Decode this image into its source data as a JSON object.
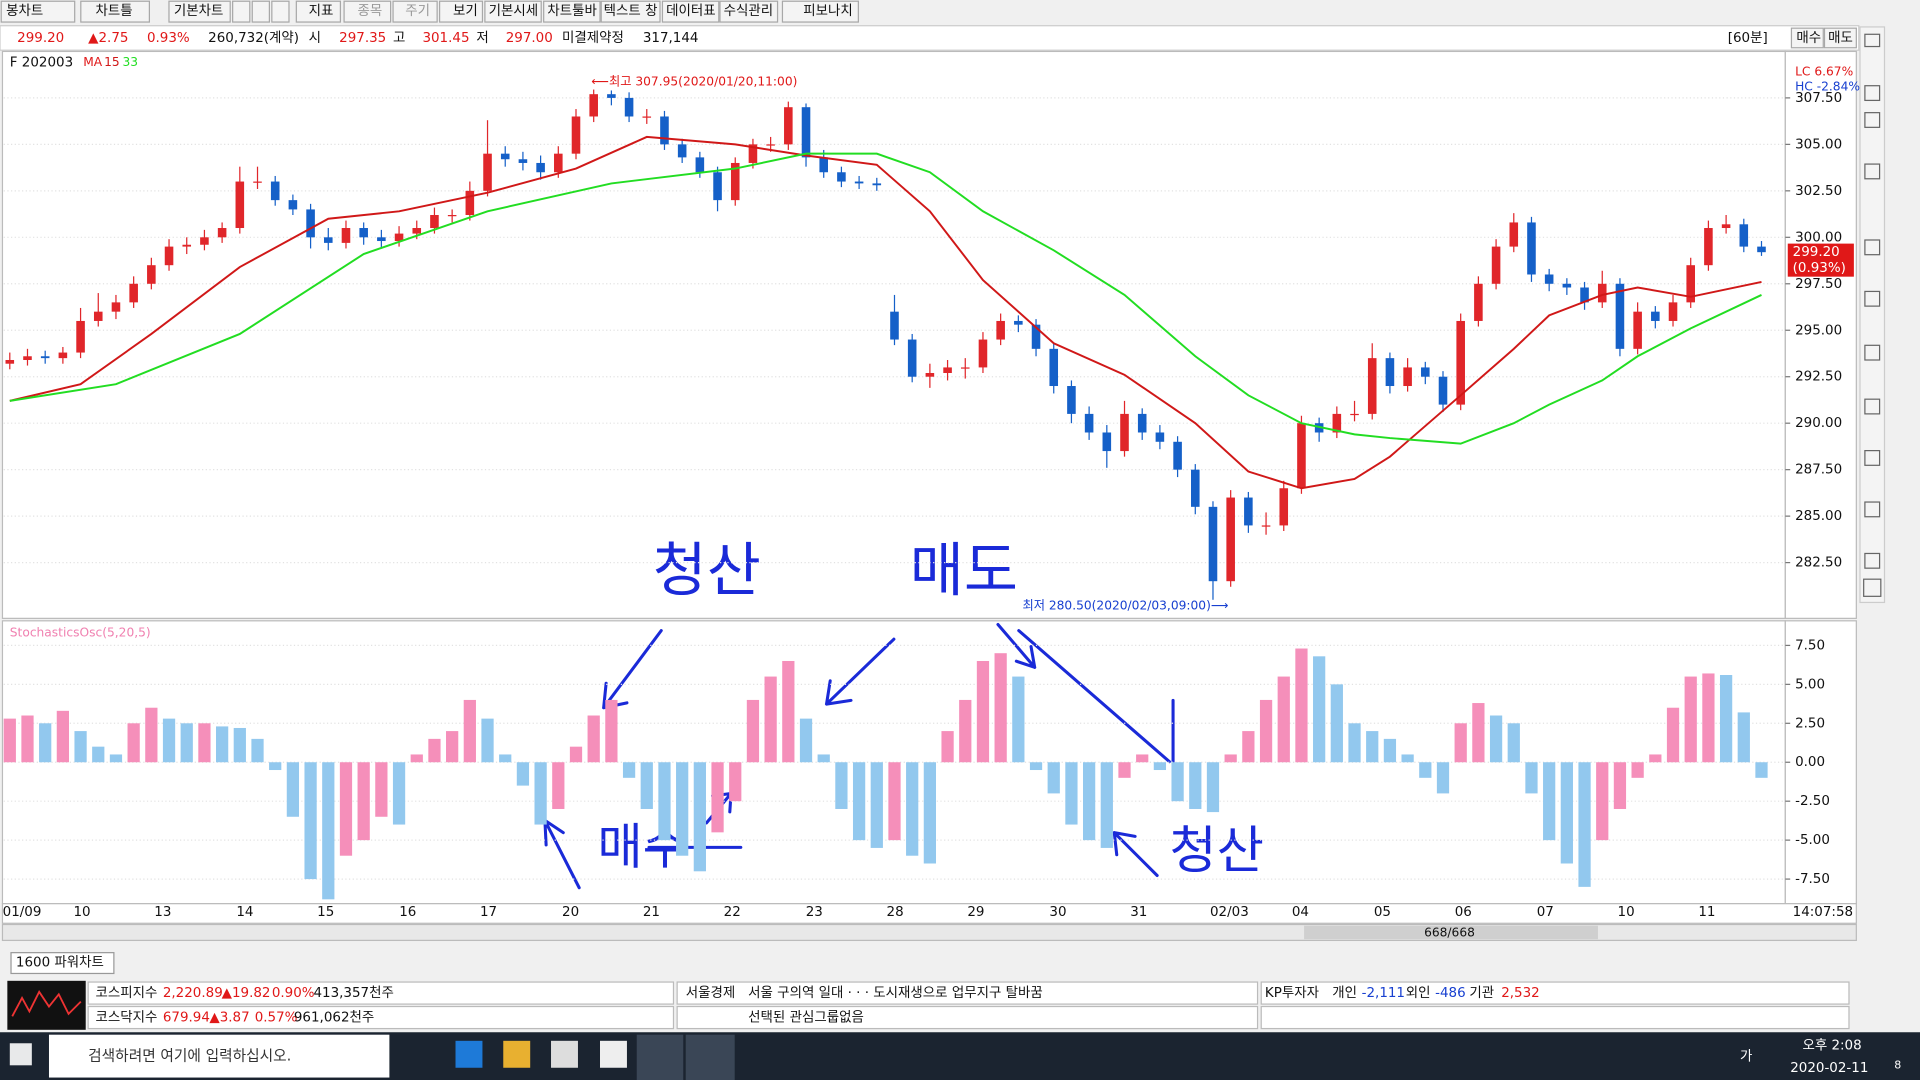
{
  "toolbar": {
    "buttons": [
      "봉차트",
      "차트틀",
      "기본차트",
      "지표",
      "종목",
      "주기",
      "보기",
      "기본시세",
      "차트툴바",
      "텍스트 창",
      "데이터표",
      "수식관리",
      "피보나치"
    ]
  },
  "info": {
    "price": "299.20",
    "change": "▲2.75",
    "rate": "0.93%",
    "volume": "260,732(계약)",
    "open_label": "시",
    "open": "297.35",
    "high_label": "고",
    "high": "301.45",
    "low_label": "저",
    "low": "297.00",
    "oi_label": "미결제약정",
    "oi": "317,144",
    "period": "[60분]",
    "buy": "매수",
    "sell": "매도"
  },
  "chart_data": [
    {
      "type": "candlestick",
      "title": "F 202003",
      "ma_label": "MA",
      "up_color": "#e0262a",
      "down_color": "#1560c8",
      "grid": true,
      "ylim": [
        279.5,
        310
      ],
      "yticks": [
        {
          "value": 307.5,
          "label": "307.50"
        },
        {
          "value": 305,
          "label": "305.00"
        },
        {
          "value": 302.5,
          "label": "302.50"
        },
        {
          "value": 300,
          "label": "300.00"
        },
        {
          "value": 297.5,
          "label": "297.50"
        },
        {
          "value": 295,
          "label": "295.00"
        },
        {
          "value": 292.5,
          "label": "292.50"
        },
        {
          "value": 290,
          "label": "290.00"
        },
        {
          "value": 287.5,
          "label": "287.50"
        },
        {
          "value": 285,
          "label": "285.00"
        },
        {
          "value": 282.5,
          "label": "282.50"
        }
      ],
      "high_annotation": "⟵최고 307.95(2020/01/20,11:00)",
      "low_annotation": "최저 280.50(2020/02/03,09:00)⟶",
      "lc": "LC  6.67%",
      "hc": "HC -2.84%",
      "last_price": {
        "value": 299.2,
        "label": "299.20"
      },
      "last_rate": "(0.93%)",
      "candles": [
        [
          293.2,
          293.8,
          292.9,
          293.4
        ],
        [
          293.4,
          294,
          293.1,
          293.6
        ],
        [
          293.6,
          293.9,
          293.2,
          293.5
        ],
        [
          293.5,
          294.1,
          293.2,
          293.8
        ],
        [
          293.8,
          296.2,
          293.5,
          295.5
        ],
        [
          295.5,
          297,
          295.2,
          296
        ],
        [
          296,
          296.9,
          295.6,
          296.5
        ],
        [
          296.5,
          297.9,
          296.2,
          297.5
        ],
        [
          297.5,
          298.9,
          297.2,
          298.5
        ],
        [
          298.5,
          299.9,
          298.2,
          299.5
        ],
        [
          299.5,
          300,
          299.1,
          299.6
        ],
        [
          299.6,
          300.4,
          299.3,
          300
        ],
        [
          300,
          300.8,
          299.7,
          300.5
        ],
        [
          300.5,
          303.8,
          300.2,
          303
        ],
        [
          303,
          303.8,
          302.6,
          303
        ],
        [
          303,
          303.3,
          301.7,
          302
        ],
        [
          302,
          302.3,
          301.2,
          301.5
        ],
        [
          301.5,
          301.8,
          299.4,
          300
        ],
        [
          300,
          300.5,
          299.3,
          299.7
        ],
        [
          299.7,
          300.9,
          299.4,
          300.5
        ],
        [
          300.5,
          300.8,
          299.6,
          300
        ],
        [
          300,
          300.4,
          299.4,
          299.8
        ],
        [
          299.8,
          300.6,
          299.5,
          300.2
        ],
        [
          300.2,
          300.9,
          299.9,
          300.5
        ],
        [
          300.5,
          301.6,
          300.2,
          301.2
        ],
        [
          301.2,
          301.5,
          300.8,
          301.2
        ],
        [
          301.2,
          303,
          300.9,
          302.5
        ],
        [
          302.5,
          306.3,
          302.2,
          304.5
        ],
        [
          304.5,
          304.9,
          303.8,
          304.2
        ],
        [
          304.2,
          304.6,
          303.6,
          304
        ],
        [
          304,
          304.4,
          303.1,
          303.5
        ],
        [
          303.5,
          304.9,
          303.2,
          304.5
        ],
        [
          304.5,
          306.9,
          304.2,
          306.5
        ],
        [
          306.5,
          307.95,
          306.2,
          307.7
        ],
        [
          307.7,
          307.9,
          307.1,
          307.5
        ],
        [
          307.5,
          307.8,
          306.2,
          306.5
        ],
        [
          306.5,
          306.9,
          306.1,
          306.5
        ],
        [
          306.5,
          306.8,
          304.7,
          305
        ],
        [
          305,
          305.3,
          304,
          304.3
        ],
        [
          304.3,
          304.6,
          303.2,
          303.5
        ],
        [
          303.5,
          303.8,
          301.4,
          302
        ],
        [
          302,
          304.3,
          301.7,
          304
        ],
        [
          304,
          305.3,
          303.7,
          305
        ],
        [
          305,
          305.4,
          304.6,
          305
        ],
        [
          305,
          307.3,
          304.7,
          307
        ],
        [
          307,
          307.2,
          303.8,
          304.3
        ],
        [
          304.3,
          304.7,
          303.2,
          303.5
        ],
        [
          303.5,
          303.8,
          302.7,
          303
        ],
        [
          303,
          303.3,
          302.6,
          302.9
        ],
        [
          302.9,
          303.2,
          302.5,
          302.8
        ],
        [
          296,
          296.9,
          294.2,
          294.5
        ],
        [
          294.5,
          294.8,
          292.2,
          292.5
        ],
        [
          292.5,
          293.2,
          291.9,
          292.7
        ],
        [
          292.7,
          293.4,
          292.3,
          293
        ],
        [
          293,
          293.5,
          292.4,
          293
        ],
        [
          293,
          294.9,
          292.7,
          294.5
        ],
        [
          294.5,
          295.9,
          294.2,
          295.5
        ],
        [
          295.5,
          295.8,
          294.9,
          295.3
        ],
        [
          295.3,
          295.6,
          293.6,
          294
        ],
        [
          294,
          294.3,
          291.6,
          292
        ],
        [
          292,
          292.3,
          290,
          290.5
        ],
        [
          290.5,
          290.9,
          289.1,
          289.5
        ],
        [
          289.5,
          289.9,
          287.6,
          288.5
        ],
        [
          288.5,
          291.2,
          288.2,
          290.5
        ],
        [
          290.5,
          290.8,
          289.1,
          289.5
        ],
        [
          289.5,
          289.9,
          288.6,
          289
        ],
        [
          289,
          289.3,
          287.1,
          287.5
        ],
        [
          287.5,
          287.8,
          285.1,
          285.5
        ],
        [
          285.5,
          285.8,
          280.5,
          281.5
        ],
        [
          281.5,
          286.4,
          281.2,
          286
        ],
        [
          286,
          286.3,
          284.1,
          284.5
        ],
        [
          284.5,
          285.2,
          284,
          284.5
        ],
        [
          284.5,
          286.9,
          284.2,
          286.5
        ],
        [
          286.5,
          290.4,
          286.2,
          290
        ],
        [
          290,
          290.3,
          289,
          289.5
        ],
        [
          289.5,
          290.9,
          289.2,
          290.5
        ],
        [
          290.5,
          291.2,
          290.1,
          290.5
        ],
        [
          290.5,
          294.3,
          290.2,
          293.5
        ],
        [
          293.5,
          293.8,
          291.6,
          292
        ],
        [
          292,
          293.5,
          291.7,
          293
        ],
        [
          293,
          293.3,
          292.1,
          292.5
        ],
        [
          292.5,
          292.8,
          290.6,
          291
        ],
        [
          291,
          295.9,
          290.7,
          295.5
        ],
        [
          295.5,
          297.9,
          295.2,
          297.5
        ],
        [
          297.5,
          299.9,
          297.2,
          299.5
        ],
        [
          299.5,
          301.3,
          299.2,
          300.8
        ],
        [
          300.8,
          301.1,
          297.6,
          298
        ],
        [
          298,
          298.3,
          297.1,
          297.5
        ],
        [
          297.5,
          297.8,
          296.9,
          297.3
        ],
        [
          297.3,
          297.6,
          296.1,
          296.5
        ],
        [
          296.5,
          298.2,
          296.2,
          297.5
        ],
        [
          297.5,
          297.8,
          293.6,
          294
        ],
        [
          294,
          296.5,
          293.7,
          296
        ],
        [
          296,
          296.3,
          295.1,
          295.5
        ],
        [
          295.5,
          296.9,
          295.2,
          296.5
        ],
        [
          296.5,
          298.9,
          296.2,
          298.5
        ],
        [
          298.5,
          300.9,
          298.2,
          300.5
        ],
        [
          300.5,
          301.2,
          300.2,
          300.7
        ],
        [
          300.7,
          301,
          299.2,
          299.5
        ],
        [
          299.5,
          299.8,
          299,
          299.2
        ]
      ],
      "series": [
        {
          "name": "15",
          "color": "#d01818",
          "x": [
            0,
            4,
            8,
            13,
            18,
            22,
            27,
            32,
            36,
            41,
            45,
            49,
            52,
            55,
            59,
            63,
            67,
            70,
            73,
            76,
            78,
            82,
            85,
            87,
            90,
            92,
            95,
            99
          ],
          "values": [
            291.2,
            292.1,
            294.8,
            298.4,
            301,
            301.4,
            302.4,
            303.7,
            305.4,
            305,
            304.4,
            303.9,
            301.4,
            297.7,
            294.3,
            292.6,
            290,
            287.4,
            286.5,
            287,
            288.2,
            291.5,
            294,
            295.8,
            296.9,
            297.3,
            296.8,
            297.6
          ]
        },
        {
          "name": "33",
          "color": "#22dd22",
          "x": [
            0,
            6,
            13,
            20,
            27,
            34,
            41,
            45,
            49,
            52,
            55,
            59,
            63,
            67,
            70,
            73,
            76,
            78,
            82,
            85,
            87,
            90,
            92,
            95,
            99
          ],
          "values": [
            291.2,
            292.1,
            294.8,
            299.1,
            301.4,
            302.9,
            303.7,
            304.5,
            304.5,
            303.5,
            301.4,
            299.3,
            296.9,
            293.6,
            291.5,
            290,
            289.4,
            289.2,
            288.9,
            290,
            291,
            292.3,
            293.6,
            295.1,
            296.9
          ]
        }
      ],
      "date_labels": [
        "01/09",
        "10",
        "13",
        "14",
        "15",
        "16",
        "17",
        "20",
        "21",
        "22",
        "23",
        "28",
        "29",
        "30",
        "31",
        "02/03",
        "04",
        "05",
        "06",
        "07",
        "10",
        "11"
      ],
      "time": "14:07:58"
    },
    {
      "type": "bar",
      "title": "StochasticsOsc(5,20,5)",
      "up_color": "#f58fba",
      "down_color": "#92c8ee",
      "grid": true,
      "ylim": [
        -9,
        9
      ],
      "yticks": [
        {
          "value": 7.5,
          "label": "7.50"
        },
        {
          "value": 5,
          "label": "5.00"
        },
        {
          "value": 2.5,
          "label": "2.50"
        },
        {
          "value": 0,
          "label": "0.00"
        },
        {
          "value": -2.5,
          "label": "-2.50"
        },
        {
          "value": -5,
          "label": "-5.00"
        },
        {
          "value": -7.5,
          "label": "-7.50"
        }
      ],
      "values": [
        2.8,
        3,
        2.5,
        3.3,
        2,
        1,
        0.5,
        2.5,
        3.5,
        2.8,
        2.5,
        2.5,
        2.3,
        2.2,
        1.5,
        -0.5,
        -3.5,
        -7.5,
        -8.8,
        -6,
        -5,
        -3.5,
        -4,
        0.5,
        1.5,
        2,
        4,
        2.8,
        0.5,
        -1.5,
        -4,
        -3,
        1,
        3,
        4,
        -1,
        -3,
        -5,
        -6,
        -7,
        -4.5,
        -2.5,
        4,
        5.5,
        6.5,
        2.8,
        0.5,
        -3,
        -5,
        -5.5,
        -5,
        -6,
        -6.5,
        2,
        4,
        6.5,
        7,
        5.5,
        -0.5,
        -2,
        -4,
        -5,
        -5.5,
        -1,
        0.5,
        -0.5,
        -2.5,
        -3,
        -3.2,
        0.5,
        2,
        4,
        5.5,
        7.3,
        6.8,
        5,
        2.5,
        2,
        1.5,
        0.5,
        -1,
        -2,
        2.5,
        3.8,
        3,
        2.5,
        -2,
        -5,
        -6.5,
        -8,
        -5,
        -3,
        -1,
        0.5,
        3.5,
        5.5,
        5.7,
        5.6,
        3.2,
        -1
      ]
    }
  ],
  "handwriting": [
    "청산",
    "매도",
    "매수",
    "청산"
  ],
  "scroll": "668/668",
  "tab": "1600 파워차트",
  "market": {
    "kospi": {
      "name": "코스피지수",
      "value": "2,220.89",
      "change": "▲19.82",
      "rate": "0.90%",
      "volume": "413,357천주"
    },
    "kosdaq": {
      "name": "코스닥지수",
      "value": "679.94",
      "change": "▲3.87",
      "rate": "0.57%",
      "volume": "961,062천주"
    },
    "news_source": "서울경제",
    "news": "서울 구의역 일대 · · · 도시재생으로 업무지구 탈바꿈",
    "group": "선택된 관심그룹없음",
    "investor": {
      "title": "KP투자자",
      "individual_label": "개인",
      "individual": "-2,111",
      "foreign_label": "외인",
      "foreign": "-486",
      "institution_label": "기관",
      "institution": "2,532"
    }
  },
  "taskbar": {
    "search": "검색하려면 여기에 입력하십시오.",
    "ime": "가",
    "time": "오후 2:08",
    "date": "2020-02-11",
    "notifications": "8"
  }
}
